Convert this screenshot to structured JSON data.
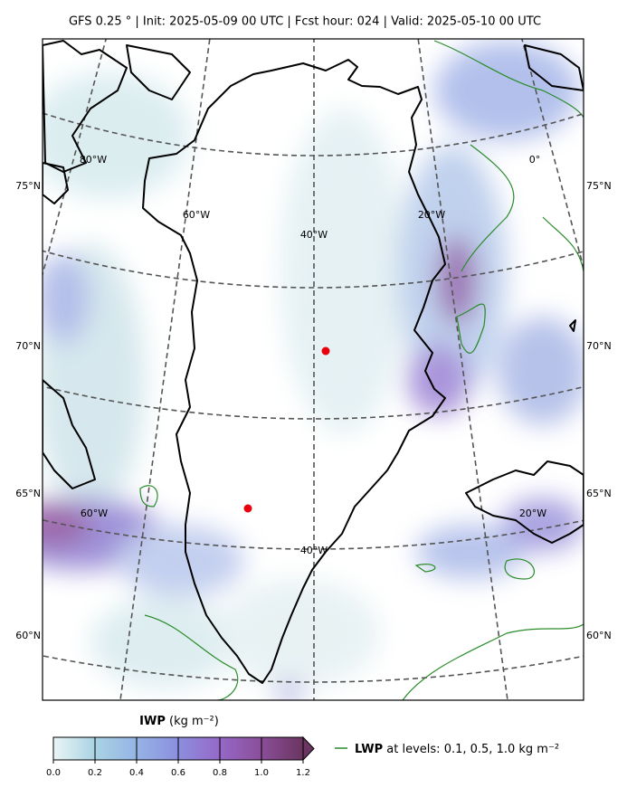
{
  "header": {
    "title": "GFS 0.25 °  |  Init: 2025-05-09 00 UTC  |  Fcst hour: 024  |  Valid: 2025-05-10 00 UTC"
  },
  "map": {
    "lat_labels": [
      "75°N",
      "70°N",
      "65°N",
      "60°N"
    ],
    "lon_labels_upper": [
      "80°W",
      "60°W",
      "40°W",
      "20°W",
      "0°"
    ],
    "lon_labels_lower": [
      "60°W",
      "40°W",
      "20°W"
    ]
  },
  "colorbar": {
    "label": "IWP",
    "label_units": "(kg m⁻²)",
    "lim": [
      0,
      1.2
    ],
    "ticks": [
      {
        "value": 0,
        "label": "0.0"
      },
      0.2,
      0.4,
      0.6,
      0.8,
      {
        "value": 1,
        "label": "1.0"
      },
      1.2
    ],
    "colors": [
      "#eaf5f6",
      "#a9d3e3",
      "#95b4e6",
      "#8c8fde",
      "#9668c8",
      "#8a4e98",
      "#6a3560"
    ]
  },
  "legend": {
    "name": "LWP",
    "text": "at levels: 0.1, 0.5, 1.0  kg m⁻²",
    "color": "#2a8c2a"
  }
}
